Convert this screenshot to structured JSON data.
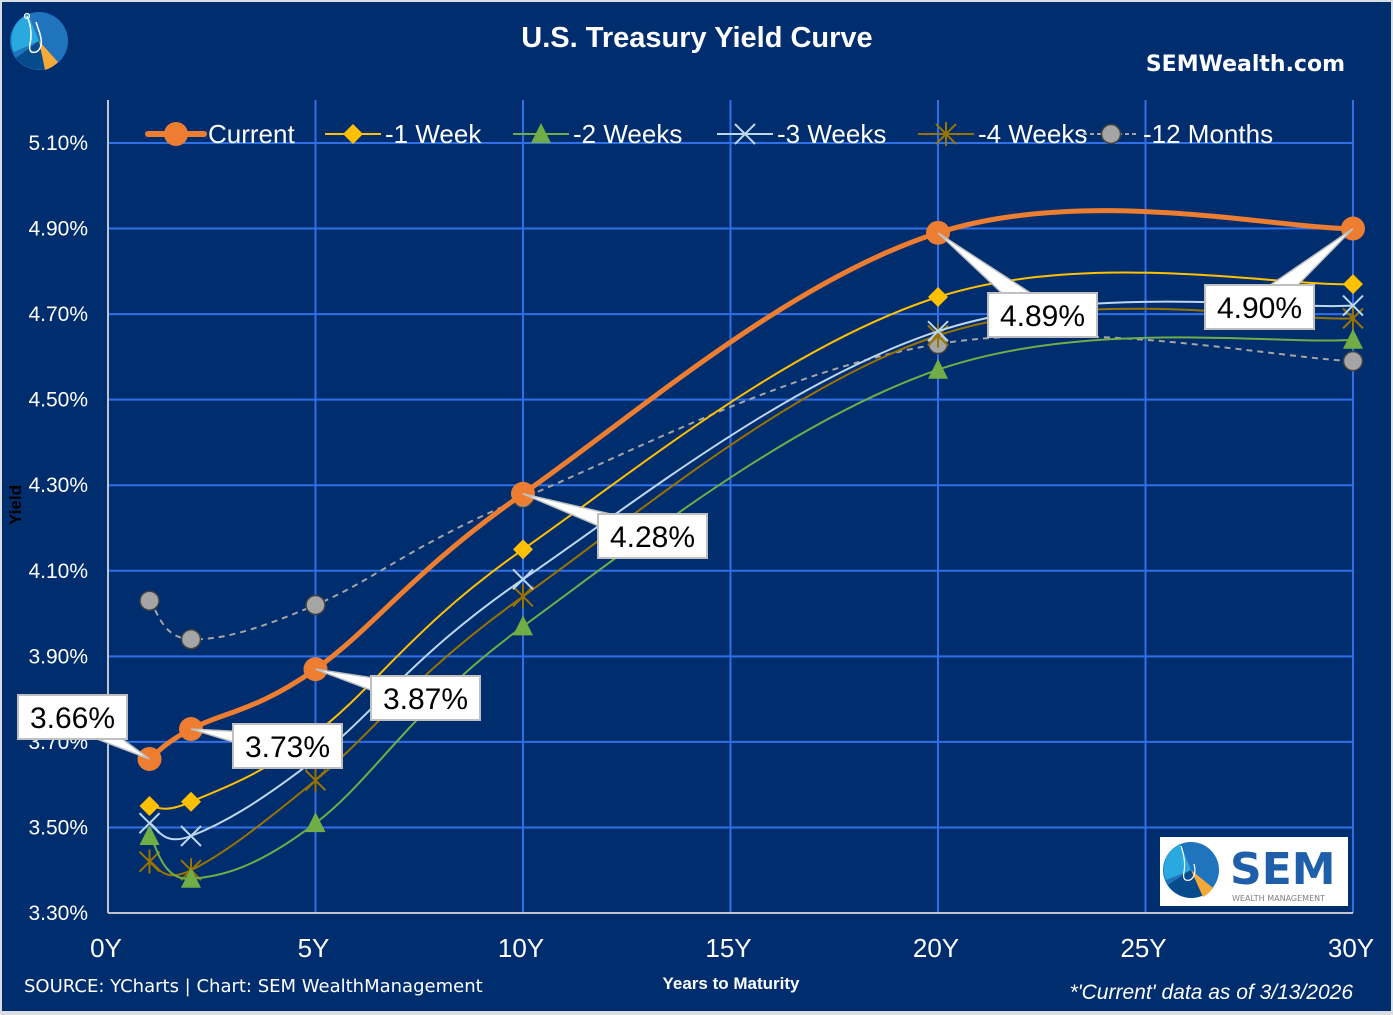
{
  "header": {
    "title": "U.S. Treasury Yield Curve",
    "site": "SEMWealth.com"
  },
  "footer": {
    "source": "SOURCE: YCharts | Chart: SEM WealthManagement",
    "note": "*'Current' data as of 3/13/2026"
  },
  "logo": {
    "brand": "SEM",
    "tagline": "WEALTH MANAGEMENT"
  },
  "colors": {
    "background": "#002d6e",
    "grid": "#2f6fe8",
    "current": "#ed7d31",
    "week1": "#ffc000",
    "week2": "#70ad47",
    "week3": "#bdd7ee",
    "week4": "#997300",
    "month12": "#a5a5a5"
  },
  "chart_data": {
    "type": "line",
    "title": "U.S. Treasury Yield Curve",
    "xlabel": "Years to Maturity",
    "ylabel": "Yield",
    "xlim": [
      0,
      30
    ],
    "ylim": [
      3.3,
      5.2
    ],
    "grid": true,
    "legend_position": "top",
    "x_ticks": [
      0,
      5,
      10,
      15,
      20,
      25,
      30
    ],
    "x_tick_labels": [
      "0Y",
      "5Y",
      "10Y",
      "15Y",
      "20Y",
      "25Y",
      "30Y"
    ],
    "y_ticks": [
      3.3,
      3.5,
      3.7,
      3.9,
      4.1,
      4.3,
      4.5,
      4.7,
      4.9,
      5.1
    ],
    "y_tick_labels": [
      "3.30%",
      "3.50%",
      "3.70%",
      "3.90%",
      "4.10%",
      "4.30%",
      "4.50%",
      "4.70%",
      "4.90%",
      "5.10%"
    ],
    "x": [
      1,
      2,
      5,
      10,
      20,
      30
    ],
    "series": [
      {
        "name": "-12 Months",
        "key": "month12",
        "marker": "circle",
        "dashed": true,
        "values": [
          4.03,
          3.94,
          4.02,
          4.27,
          4.63,
          4.59
        ]
      },
      {
        "name": "-4 Weeks",
        "key": "week4",
        "marker": "star",
        "dashed": false,
        "values": [
          3.42,
          3.4,
          3.61,
          4.04,
          4.65,
          4.69
        ]
      },
      {
        "name": "-3 Weeks",
        "key": "week3",
        "marker": "x",
        "dashed": false,
        "values": [
          3.51,
          3.48,
          3.66,
          4.08,
          4.66,
          4.72
        ]
      },
      {
        "name": "-2 Weeks",
        "key": "week2",
        "marker": "triangle",
        "dashed": false,
        "values": [
          3.48,
          3.38,
          3.51,
          3.97,
          4.57,
          4.64
        ]
      },
      {
        "name": "-1 Week",
        "key": "week1",
        "marker": "diamond",
        "dashed": false,
        "values": [
          3.55,
          3.56,
          3.72,
          4.15,
          4.74,
          4.77
        ]
      },
      {
        "name": "Current",
        "key": "current",
        "marker": "circle",
        "dashed": false,
        "values": [
          3.66,
          3.73,
          3.87,
          4.28,
          4.89,
          4.9
        ]
      }
    ],
    "legend_order": [
      "Current",
      "-1 Week",
      "-2 Weeks",
      "-3 Weeks",
      "-4 Weeks",
      "-12 Months"
    ],
    "annotations": [
      {
        "text": "3.66%",
        "x": 1,
        "y": 3.66
      },
      {
        "text": "3.73%",
        "x": 2,
        "y": 3.73
      },
      {
        "text": "3.87%",
        "x": 5,
        "y": 3.87
      },
      {
        "text": "4.28%",
        "x": 10,
        "y": 4.28
      },
      {
        "text": "4.89%",
        "x": 20,
        "y": 4.89
      },
      {
        "text": "4.90%",
        "x": 30,
        "y": 4.9
      }
    ]
  }
}
